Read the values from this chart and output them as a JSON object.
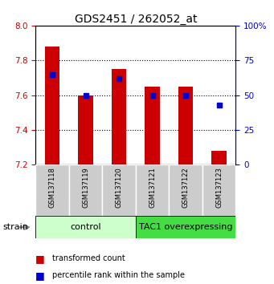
{
  "title": "GDS2451 / 262052_at",
  "samples": [
    "GSM137118",
    "GSM137119",
    "GSM137120",
    "GSM137121",
    "GSM137122",
    "GSM137123"
  ],
  "transformed_counts": [
    7.88,
    7.6,
    7.75,
    7.65,
    7.65,
    7.28
  ],
  "percentile_ranks": [
    65,
    50,
    62,
    50,
    50,
    43
  ],
  "ylim_left": [
    7.2,
    8.0
  ],
  "ylim_right": [
    0,
    100
  ],
  "yticks_left": [
    7.2,
    7.4,
    7.6,
    7.8,
    8.0
  ],
  "yticks_right": [
    0,
    25,
    50,
    75,
    100
  ],
  "bar_color": "#cc0000",
  "dot_color": "#0000cc",
  "bar_bottom": 7.2,
  "groups": [
    {
      "label": "control",
      "indices": [
        0,
        1,
        2
      ],
      "color": "#ccffcc"
    },
    {
      "label": "TAC1 overexpressing",
      "indices": [
        3,
        4,
        5
      ],
      "color": "#44dd44"
    }
  ],
  "group_label": "strain",
  "legend_items": [
    {
      "color": "#cc0000",
      "label": "transformed count"
    },
    {
      "color": "#0000cc",
      "label": "percentile rank within the sample"
    }
  ],
  "title_fontsize": 10,
  "tick_fontsize": 7.5,
  "sample_fontsize": 6,
  "group_fontsize": 8,
  "legend_fontsize": 7
}
